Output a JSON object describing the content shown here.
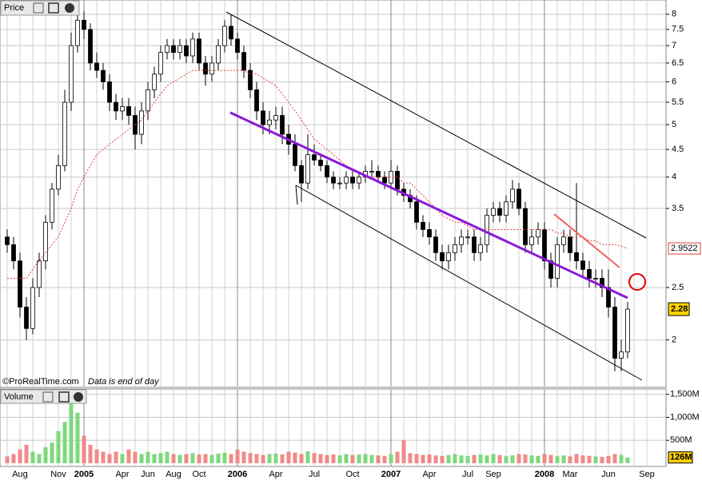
{
  "chart_data": [
    {
      "type": "candlestick",
      "title": "Price",
      "log_scale": true,
      "grid": true,
      "up_color": "#ffffff",
      "down_color": "#000000",
      "ma_color": "#e04040",
      "notes": [
        "©ProRealTime.com",
        "Data is end of day"
      ],
      "ylim": [
        1.64,
        8.5
      ],
      "yticks": [
        2,
        2.5,
        3.5,
        4,
        4.5,
        5,
        5.5,
        6,
        6.5,
        7,
        7.5,
        8
      ],
      "open": [
        3.1,
        3.0,
        2.8,
        2.3,
        2.1,
        2.5,
        2.8,
        3.3,
        3.8,
        4.2,
        5.5,
        7.0,
        7.8,
        7.5,
        6.5,
        6.3,
        6.0,
        5.5,
        5.3,
        5.4,
        5.2,
        4.8,
        5.3,
        5.8,
        6.2,
        6.8,
        7.0,
        6.8,
        7.0,
        6.7,
        7.2,
        6.5,
        6.2,
        6.5,
        7.0,
        7.6,
        7.2,
        6.8,
        6.3,
        5.8,
        5.3,
        5.0,
        5.1,
        5.2,
        4.8,
        4.6,
        4.2,
        3.9,
        4.4,
        4.3,
        4.2,
        4.0,
        3.9,
        3.9,
        4.0,
        3.9,
        4.0,
        4.1,
        4.1,
        4.0,
        3.9,
        4.1,
        3.8,
        3.7,
        3.6,
        3.3,
        3.2,
        3.1,
        2.9,
        2.8,
        2.9,
        3.0,
        3.1,
        3.1,
        2.9,
        3.0,
        3.4,
        3.5,
        3.4,
        3.6,
        3.8,
        3.5,
        3.0,
        3.1,
        3.2,
        2.8,
        2.6,
        3.0,
        3.1,
        2.9,
        2.8,
        2.7,
        2.6,
        2.6,
        2.5,
        2.3,
        1.85,
        1.9
      ],
      "high": [
        3.2,
        3.1,
        2.9,
        2.4,
        2.6,
        2.9,
        3.4,
        3.9,
        4.4,
        5.8,
        7.4,
        8.3,
        8.1,
        7.7,
        6.8,
        6.5,
        6.2,
        5.7,
        5.6,
        5.6,
        5.4,
        5.5,
        6.0,
        6.4,
        7.0,
        7.2,
        7.2,
        7.2,
        7.2,
        7.4,
        7.4,
        6.7,
        6.7,
        7.2,
        7.8,
        8.0,
        7.4,
        7.0,
        6.5,
        6.0,
        5.5,
        5.3,
        5.4,
        5.4,
        5.0,
        4.8,
        4.3,
        4.8,
        4.6,
        4.4,
        4.3,
        4.1,
        4.0,
        4.1,
        4.1,
        4.1,
        4.2,
        4.3,
        4.2,
        4.1,
        4.3,
        4.2,
        3.9,
        3.8,
        3.7,
        3.4,
        3.3,
        3.2,
        3.0,
        3.0,
        3.1,
        3.2,
        3.2,
        3.2,
        3.1,
        3.5,
        3.6,
        3.6,
        3.7,
        3.95,
        3.9,
        3.6,
        3.2,
        3.3,
        3.3,
        2.9,
        3.1,
        3.2,
        3.2,
        3.9,
        2.9,
        2.8,
        2.7,
        2.7,
        2.7,
        2.4,
        2.0,
        2.35
      ],
      "low": [
        2.9,
        2.7,
        2.2,
        2.0,
        2.05,
        2.4,
        2.7,
        3.2,
        3.7,
        4.1,
        5.3,
        6.8,
        7.2,
        6.3,
        6.1,
        5.8,
        5.3,
        5.1,
        5.1,
        5.0,
        4.5,
        4.6,
        5.1,
        5.6,
        6.0,
        6.6,
        6.6,
        6.6,
        6.5,
        6.5,
        6.3,
        5.9,
        6.0,
        6.3,
        6.8,
        7.0,
        6.6,
        6.1,
        5.6,
        5.1,
        4.8,
        4.8,
        4.9,
        4.6,
        4.4,
        4.1,
        3.6,
        3.8,
        4.2,
        4.1,
        3.9,
        3.8,
        3.8,
        3.8,
        3.8,
        3.8,
        3.9,
        4.0,
        3.9,
        3.8,
        3.8,
        3.7,
        3.6,
        3.5,
        3.2,
        3.1,
        3.0,
        2.8,
        2.7,
        2.7,
        2.8,
        2.9,
        3.0,
        2.8,
        2.8,
        2.9,
        3.3,
        3.3,
        3.3,
        3.5,
        3.4,
        2.9,
        2.9,
        3.0,
        2.7,
        2.5,
        2.5,
        2.9,
        2.8,
        2.7,
        2.6,
        2.5,
        2.5,
        2.4,
        2.2,
        1.75,
        1.75,
        1.85
      ],
      "close": [
        3.0,
        2.8,
        2.3,
        2.1,
        2.5,
        2.8,
        3.3,
        3.8,
        4.2,
        5.5,
        7.0,
        7.8,
        7.5,
        6.5,
        6.3,
        6.0,
        5.5,
        5.3,
        5.4,
        5.2,
        4.8,
        5.3,
        5.8,
        6.2,
        6.8,
        7.0,
        6.8,
        7.0,
        6.7,
        7.2,
        6.5,
        6.2,
        6.5,
        7.0,
        7.6,
        7.2,
        6.8,
        6.3,
        5.8,
        5.3,
        5.0,
        5.1,
        5.2,
        4.8,
        4.6,
        4.2,
        3.9,
        4.4,
        4.3,
        4.2,
        4.0,
        3.9,
        3.9,
        4.0,
        3.9,
        4.0,
        4.1,
        4.1,
        4.0,
        3.9,
        4.1,
        3.8,
        3.7,
        3.6,
        3.3,
        3.2,
        3.1,
        2.9,
        2.8,
        2.9,
        3.0,
        3.1,
        3.1,
        2.9,
        3.0,
        3.4,
        3.5,
        3.4,
        3.6,
        3.8,
        3.5,
        3.0,
        3.1,
        3.2,
        2.8,
        2.6,
        3.0,
        3.1,
        2.9,
        2.8,
        2.7,
        2.6,
        2.6,
        2.5,
        2.3,
        1.85,
        1.9,
        2.28
      ],
      "ma": [
        2.6,
        2.6,
        2.6,
        2.6,
        2.7,
        2.8,
        2.9,
        3.0,
        3.1,
        3.3,
        3.5,
        3.8,
        4.0,
        4.2,
        4.4,
        4.5,
        4.6,
        4.7,
        4.8,
        4.9,
        5.0,
        5.1,
        5.3,
        5.5,
        5.7,
        5.9,
        6.0,
        6.1,
        6.2,
        6.3,
        6.3,
        6.3,
        6.3,
        6.3,
        6.3,
        6.3,
        6.3,
        6.3,
        6.2,
        6.2,
        6.1,
        6.0,
        5.9,
        5.7,
        5.5,
        5.3,
        5.1,
        4.9,
        4.7,
        4.6,
        4.5,
        4.4,
        4.3,
        4.2,
        4.1,
        4.1,
        4.0,
        4.0,
        4.0,
        4.0,
        4.0,
        4.0,
        3.9,
        3.9,
        3.8,
        3.7,
        3.6,
        3.5,
        3.4,
        3.35,
        3.3,
        3.3,
        3.25,
        3.2,
        3.2,
        3.2,
        3.2,
        3.2,
        3.2,
        3.2,
        3.2,
        3.2,
        3.2,
        3.2,
        3.2,
        3.2,
        3.15,
        3.15,
        3.1,
        3.1,
        3.1,
        3.05,
        3.05,
        3.0,
        3.0,
        3.0,
        2.98,
        2.9522
      ]
    },
    {
      "type": "bar",
      "title": "Volume",
      "grid": true,
      "up_color": "#7ed87e",
      "down_color": "#f08a8a",
      "ylim": [
        0,
        1600
      ],
      "yticks": [
        {
          "value": 500,
          "label": "500M"
        },
        {
          "value": 1000,
          "label": "1,000M"
        },
        {
          "value": 1500,
          "label": "1,500M"
        }
      ],
      "categories": [
        null,
        null,
        "Aug",
        null,
        null,
        null,
        null,
        null,
        "Nov",
        null,
        null,
        null,
        "2005",
        null,
        null,
        null,
        null,
        null,
        "Apr",
        null,
        null,
        null,
        "Jun",
        null,
        null,
        null,
        "Aug",
        null,
        null,
        null,
        "Oct",
        null,
        null,
        null,
        null,
        null,
        "2006",
        null,
        null,
        null,
        null,
        null,
        "Apr",
        null,
        null,
        null,
        null,
        null,
        "Jul",
        null,
        null,
        null,
        null,
        null,
        "Oct",
        null,
        null,
        null,
        null,
        null,
        "2007",
        null,
        null,
        null,
        null,
        null,
        "Apr",
        null,
        null,
        null,
        null,
        null,
        "Jul",
        null,
        null,
        null,
        "Sep",
        null,
        null,
        null,
        null,
        null,
        null,
        null,
        "2008",
        null,
        null,
        null,
        "Mar",
        null,
        null,
        null,
        null,
        null,
        "Jun",
        null,
        null,
        null,
        null,
        null,
        "Sep"
      ],
      "values": [
        150,
        200,
        300,
        400,
        250,
        200,
        350,
        450,
        700,
        900,
        1500,
        1100,
        600,
        400,
        300,
        250,
        200,
        250,
        200,
        300,
        250,
        200,
        250,
        200,
        220,
        250,
        200,
        180,
        200,
        220,
        190,
        200,
        180,
        210,
        230,
        200,
        300,
        250,
        220,
        200,
        180,
        200,
        210,
        190,
        250,
        230,
        200,
        260,
        220,
        200,
        180,
        190,
        170,
        200,
        180,
        190,
        200,
        180,
        170,
        160,
        200,
        250,
        500,
        220,
        200,
        180,
        190,
        170,
        160,
        180,
        200,
        170,
        160,
        180,
        190,
        170,
        200,
        180,
        160,
        170,
        200,
        190,
        170,
        160,
        200,
        180,
        160,
        170,
        150,
        200,
        170,
        160,
        150,
        140,
        160,
        200,
        180,
        126,
        null,
        null,
        null
      ],
      "value_labels": [
        null,
        null,
        null,
        null,
        null,
        null,
        null,
        null,
        null,
        null,
        null,
        null,
        null,
        null,
        null,
        null,
        null,
        null,
        null,
        null,
        null,
        null,
        null,
        null,
        null,
        null,
        null,
        null,
        null,
        null,
        null,
        null,
        null,
        null,
        null,
        null,
        null,
        null,
        null,
        null,
        null,
        null,
        null,
        null,
        null,
        null,
        null,
        null,
        null,
        null,
        null,
        null,
        null,
        null,
        null,
        null,
        null,
        null,
        null,
        null,
        null,
        null,
        null,
        null,
        null,
        null,
        null,
        null,
        null,
        null,
        null,
        null,
        null,
        null,
        null,
        null,
        null,
        null,
        null,
        null,
        null,
        null,
        null,
        null,
        null,
        null,
        null,
        null,
        null,
        null,
        null,
        null,
        null,
        null,
        null,
        null,
        null,
        "126M",
        null,
        null,
        null
      ]
    }
  ]
}
